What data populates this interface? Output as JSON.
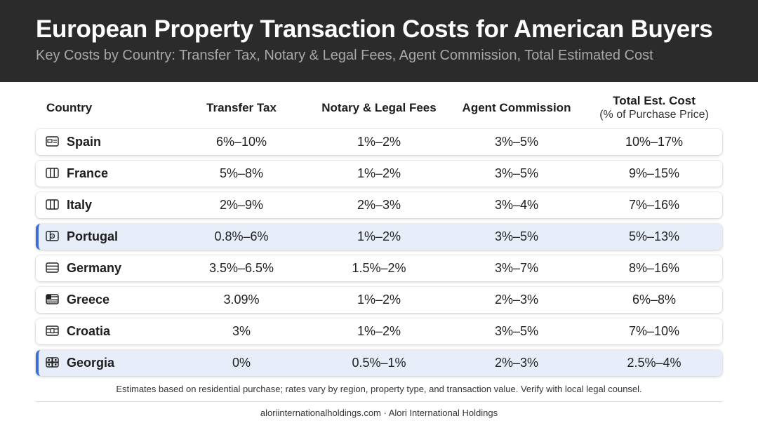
{
  "header": {
    "title": "European Property Transaction Costs for American Buyers",
    "subtitle": "Key Costs by Country: Transfer Tax, Notary & Legal Fees, Agent Commission, Total Estimated Cost"
  },
  "chart_data": {
    "type": "table",
    "columns": [
      {
        "label": "Country",
        "sub": ""
      },
      {
        "label": "Transfer Tax",
        "sub": ""
      },
      {
        "label": "Notary & Legal Fees",
        "sub": ""
      },
      {
        "label": "Agent Commission",
        "sub": ""
      },
      {
        "label": "Total Est. Cost",
        "sub": "(% of Purchase Price)"
      }
    ],
    "rows": [
      {
        "country": "Spain",
        "icon": "spain-flag-icon",
        "highlight": false,
        "values": [
          "6%–10%",
          "1%–2%",
          "3%–5%",
          "10%–17%"
        ]
      },
      {
        "country": "France",
        "icon": "france-flag-icon",
        "highlight": false,
        "values": [
          "5%–8%",
          "1%–2%",
          "3%–5%",
          "9%–15%"
        ]
      },
      {
        "country": "Italy",
        "icon": "italy-flag-icon",
        "highlight": false,
        "values": [
          "2%–9%",
          "2%–3%",
          "3%–4%",
          "7%–16%"
        ]
      },
      {
        "country": "Portugal",
        "icon": "portugal-flag-icon",
        "highlight": true,
        "values": [
          "0.8%–6%",
          "1%–2%",
          "3%–5%",
          "5%–13%"
        ]
      },
      {
        "country": "Germany",
        "icon": "germany-flag-icon",
        "highlight": false,
        "values": [
          "3.5%–6.5%",
          "1.5%–2%",
          "3%–7%",
          "8%–16%"
        ]
      },
      {
        "country": "Greece",
        "icon": "greece-flag-icon",
        "highlight": false,
        "values": [
          "3.09%",
          "1%–2%",
          "2%–3%",
          "6%–8%"
        ]
      },
      {
        "country": "Croatia",
        "icon": "croatia-flag-icon",
        "highlight": false,
        "values": [
          "3%",
          "1%–2%",
          "3%–5%",
          "7%–10%"
        ]
      },
      {
        "country": "Georgia",
        "icon": "georgia-flag-icon",
        "highlight": true,
        "values": [
          "0%",
          "0.5%–1%",
          "2%–3%",
          "2.5%–4%"
        ]
      }
    ],
    "highlight_color": "#3b6fd6"
  },
  "footnote": "Estimates based on residential purchase; rates vary by region, property type, and transaction value. Verify with local legal counsel.",
  "footer": "aloriinternationalholdings.com · Alori International Holdings"
}
